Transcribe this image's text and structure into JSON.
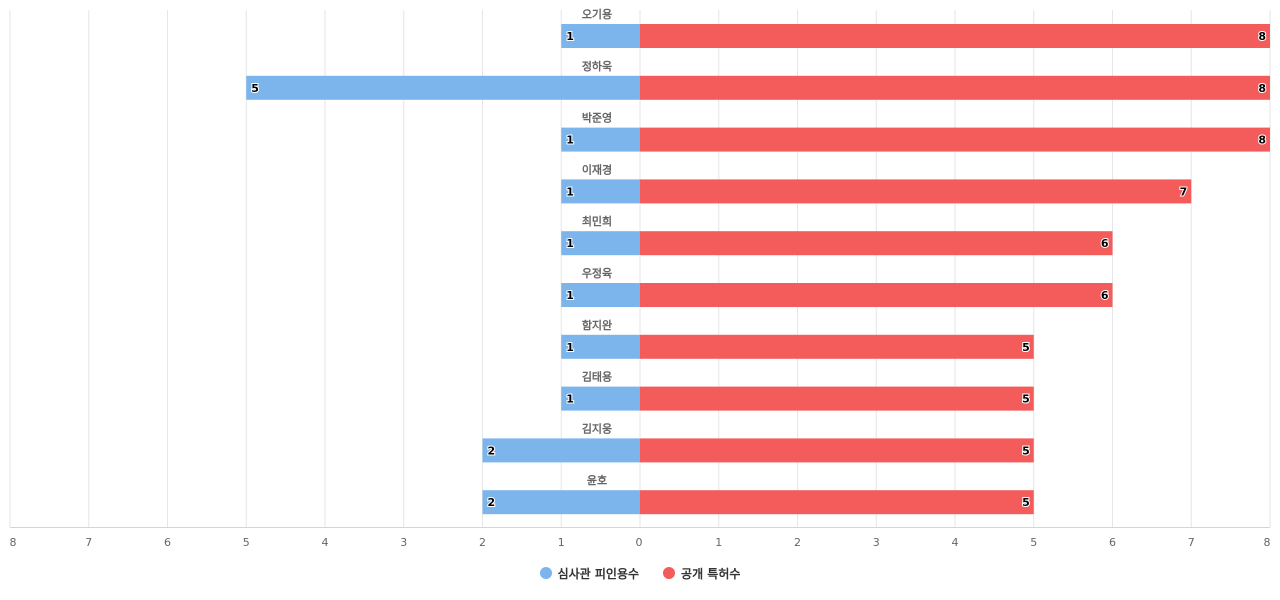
{
  "chart_data": {
    "type": "bar",
    "orientation": "horizontal-diverging",
    "categories": [
      "오기용",
      "정하욱",
      "박준영",
      "이재경",
      "최민희",
      "우정육",
      "함지완",
      "김태용",
      "김지웅",
      "윤호"
    ],
    "series": [
      {
        "name": "심사관 피인용수",
        "values": [
          1,
          5,
          1,
          1,
          1,
          1,
          1,
          1,
          2,
          2
        ],
        "color": "#7cb5ec",
        "side": "left"
      },
      {
        "name": "공개 특허수",
        "values": [
          8,
          8,
          8,
          7,
          6,
          6,
          5,
          5,
          5,
          5
        ],
        "color": "#f45b5b",
        "side": "right"
      }
    ],
    "x_ticks_left": [
      "8",
      "7",
      "6",
      "5",
      "4",
      "3",
      "2",
      "1",
      "0"
    ],
    "x_ticks_right": [
      "1",
      "2",
      "3",
      "4",
      "5",
      "6",
      "7",
      "8"
    ],
    "xlim": [
      -8,
      8
    ],
    "grid": true,
    "legend_position": "bottom-center",
    "data_labels": true
  }
}
